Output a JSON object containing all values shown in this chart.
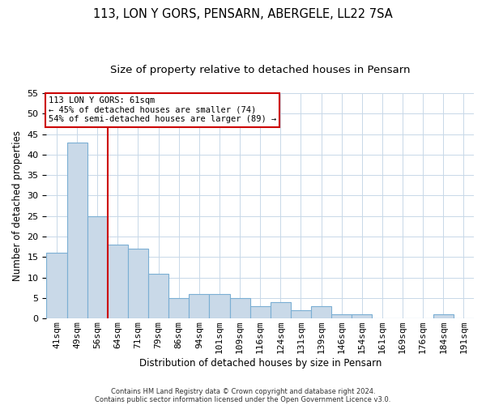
{
  "title": "113, LON Y GORS, PENSARN, ABERGELE, LL22 7SA",
  "subtitle": "Size of property relative to detached houses in Pensarn",
  "xlabel": "Distribution of detached houses by size in Pensarn",
  "ylabel": "Number of detached properties",
  "categories": [
    "41sqm",
    "49sqm",
    "56sqm",
    "64sqm",
    "71sqm",
    "79sqm",
    "86sqm",
    "94sqm",
    "101sqm",
    "109sqm",
    "116sqm",
    "124sqm",
    "131sqm",
    "139sqm",
    "146sqm",
    "154sqm",
    "161sqm",
    "169sqm",
    "176sqm",
    "184sqm",
    "191sqm"
  ],
  "values": [
    16,
    43,
    25,
    18,
    17,
    11,
    5,
    6,
    6,
    5,
    3,
    4,
    2,
    3,
    1,
    1,
    0,
    0,
    0,
    1,
    0
  ],
  "bar_color": "#c9d9e8",
  "bar_edge_color": "#7bafd4",
  "vline_x": 2.5,
  "vline_color": "#cc0000",
  "ylim": [
    0,
    55
  ],
  "yticks": [
    0,
    5,
    10,
    15,
    20,
    25,
    30,
    35,
    40,
    45,
    50,
    55
  ],
  "annotation_title": "113 LON Y GORS: 61sqm",
  "annotation_line1": "← 45% of detached houses are smaller (74)",
  "annotation_line2": "54% of semi-detached houses are larger (89) →",
  "annotation_box_color": "#ffffff",
  "annotation_box_edge": "#cc0000",
  "footnote1": "Contains HM Land Registry data © Crown copyright and database right 2024.",
  "footnote2": "Contains public sector information licensed under the Open Government Licence v3.0.",
  "bg_color": "#ffffff",
  "grid_color": "#c8d8e8",
  "title_fontsize": 10.5,
  "subtitle_fontsize": 9.5,
  "label_fontsize": 8.5,
  "tick_fontsize": 8,
  "annot_fontsize": 7.5,
  "footnote_fontsize": 6
}
